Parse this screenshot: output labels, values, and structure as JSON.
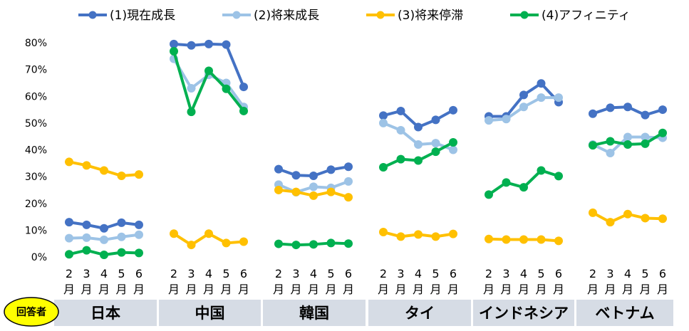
{
  "chart_data": {
    "type": "line",
    "respondent_label": "回答者",
    "ylim": [
      0,
      80
    ],
    "yticks": [
      "0%",
      "10%",
      "20%",
      "30%",
      "40%",
      "50%",
      "60%",
      "70%",
      "80%"
    ],
    "month_numbers": [
      "2",
      "3",
      "4",
      "5",
      "6"
    ],
    "month_suffix": "月",
    "legend_position": "top",
    "series": [
      {
        "name": "(1)現在成長",
        "color": "#4472C4"
      },
      {
        "name": "(2)将来成長",
        "color": "#9DC3E6"
      },
      {
        "name": "(3)将来停滞",
        "color": "#FFC000"
      },
      {
        "name": "(4)アフィニティ",
        "color": "#00B050"
      }
    ],
    "groups": [
      {
        "country": "日本",
        "values": [
          [
            13.0,
            12.0,
            10.7,
            12.8,
            12.0
          ],
          [
            7.0,
            7.2,
            6.4,
            7.5,
            8.3
          ],
          [
            35.5,
            34.2,
            32.3,
            30.3,
            30.8
          ],
          [
            1.0,
            2.5,
            0.8,
            1.7,
            1.5
          ]
        ]
      },
      {
        "country": "中国",
        "values": [
          [
            79.5,
            79.0,
            79.5,
            79.3,
            63.5
          ],
          [
            74.0,
            63.0,
            68.0,
            65.0,
            56.0
          ],
          [
            8.7,
            4.5,
            8.7,
            5.2,
            5.7
          ],
          [
            76.8,
            54.2,
            69.5,
            62.8,
            54.5
          ]
        ]
      },
      {
        "country": "韓国",
        "values": [
          [
            32.8,
            30.5,
            30.3,
            32.6,
            33.7
          ],
          [
            27.0,
            24.2,
            26.2,
            25.8,
            28.2
          ],
          [
            25.0,
            24.3,
            22.9,
            24.3,
            22.3
          ],
          [
            4.9,
            4.5,
            4.7,
            5.2,
            5.0
          ]
        ]
      },
      {
        "country": "タイ",
        "values": [
          [
            52.8,
            54.5,
            48.5,
            51.2,
            54.8
          ],
          [
            50.0,
            47.3,
            42.0,
            42.5,
            40.0
          ],
          [
            9.3,
            7.6,
            8.4,
            7.6,
            8.6
          ],
          [
            33.5,
            36.5,
            36.0,
            39.3,
            42.8
          ]
        ]
      },
      {
        "country": "インドネシア",
        "values": [
          [
            52.5,
            52.5,
            60.5,
            64.8,
            57.8
          ],
          [
            51.0,
            51.5,
            56.0,
            59.5,
            59.5
          ],
          [
            6.7,
            6.5,
            6.5,
            6.5,
            6.0
          ],
          [
            23.3,
            27.8,
            26.0,
            32.3,
            30.2
          ]
        ]
      },
      {
        "country": "ベトナム",
        "values": [
          [
            53.5,
            55.7,
            56.0,
            53.0,
            55.0
          ],
          [
            42.0,
            38.8,
            44.8,
            44.8,
            44.5
          ],
          [
            16.5,
            13.0,
            16.0,
            14.5,
            14.3
          ],
          [
            41.7,
            43.2,
            42.0,
            42.3,
            46.3
          ]
        ]
      }
    ]
  }
}
